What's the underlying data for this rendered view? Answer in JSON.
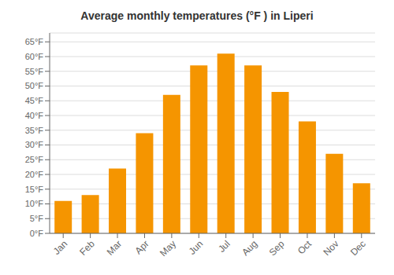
{
  "chart_data": {
    "type": "bar",
    "title": "Average monthly temperatures (°F ) in Liperi",
    "categories": [
      "Jan",
      "Feb",
      "Mar",
      "Apr",
      "May",
      "Jun",
      "Jul",
      "Aug",
      "Sep",
      "Oct",
      "Nov",
      "Dec"
    ],
    "values": [
      11,
      13,
      22,
      34,
      47,
      57,
      61,
      57,
      48,
      38,
      27,
      17
    ],
    "color": "#F59500",
    "ylim": [
      0,
      68
    ],
    "yticks": [
      {
        "value": 0,
        "label": "0°F"
      },
      {
        "value": 5,
        "label": "5°F"
      },
      {
        "value": 10,
        "label": "10°F"
      },
      {
        "value": 15,
        "label": "15°F"
      },
      {
        "value": 20,
        "label": "20°F"
      },
      {
        "value": 25,
        "label": "25°F"
      },
      {
        "value": 30,
        "label": "30°F"
      },
      {
        "value": 35,
        "label": "35°F"
      },
      {
        "value": 40,
        "label": "40°F"
      },
      {
        "value": 45,
        "label": "45°F"
      },
      {
        "value": 50,
        "label": "50°F"
      },
      {
        "value": 55,
        "label": "55°F"
      },
      {
        "value": 60,
        "label": "60°F"
      },
      {
        "value": 65,
        "label": "65°F"
      }
    ],
    "grid": true
  }
}
